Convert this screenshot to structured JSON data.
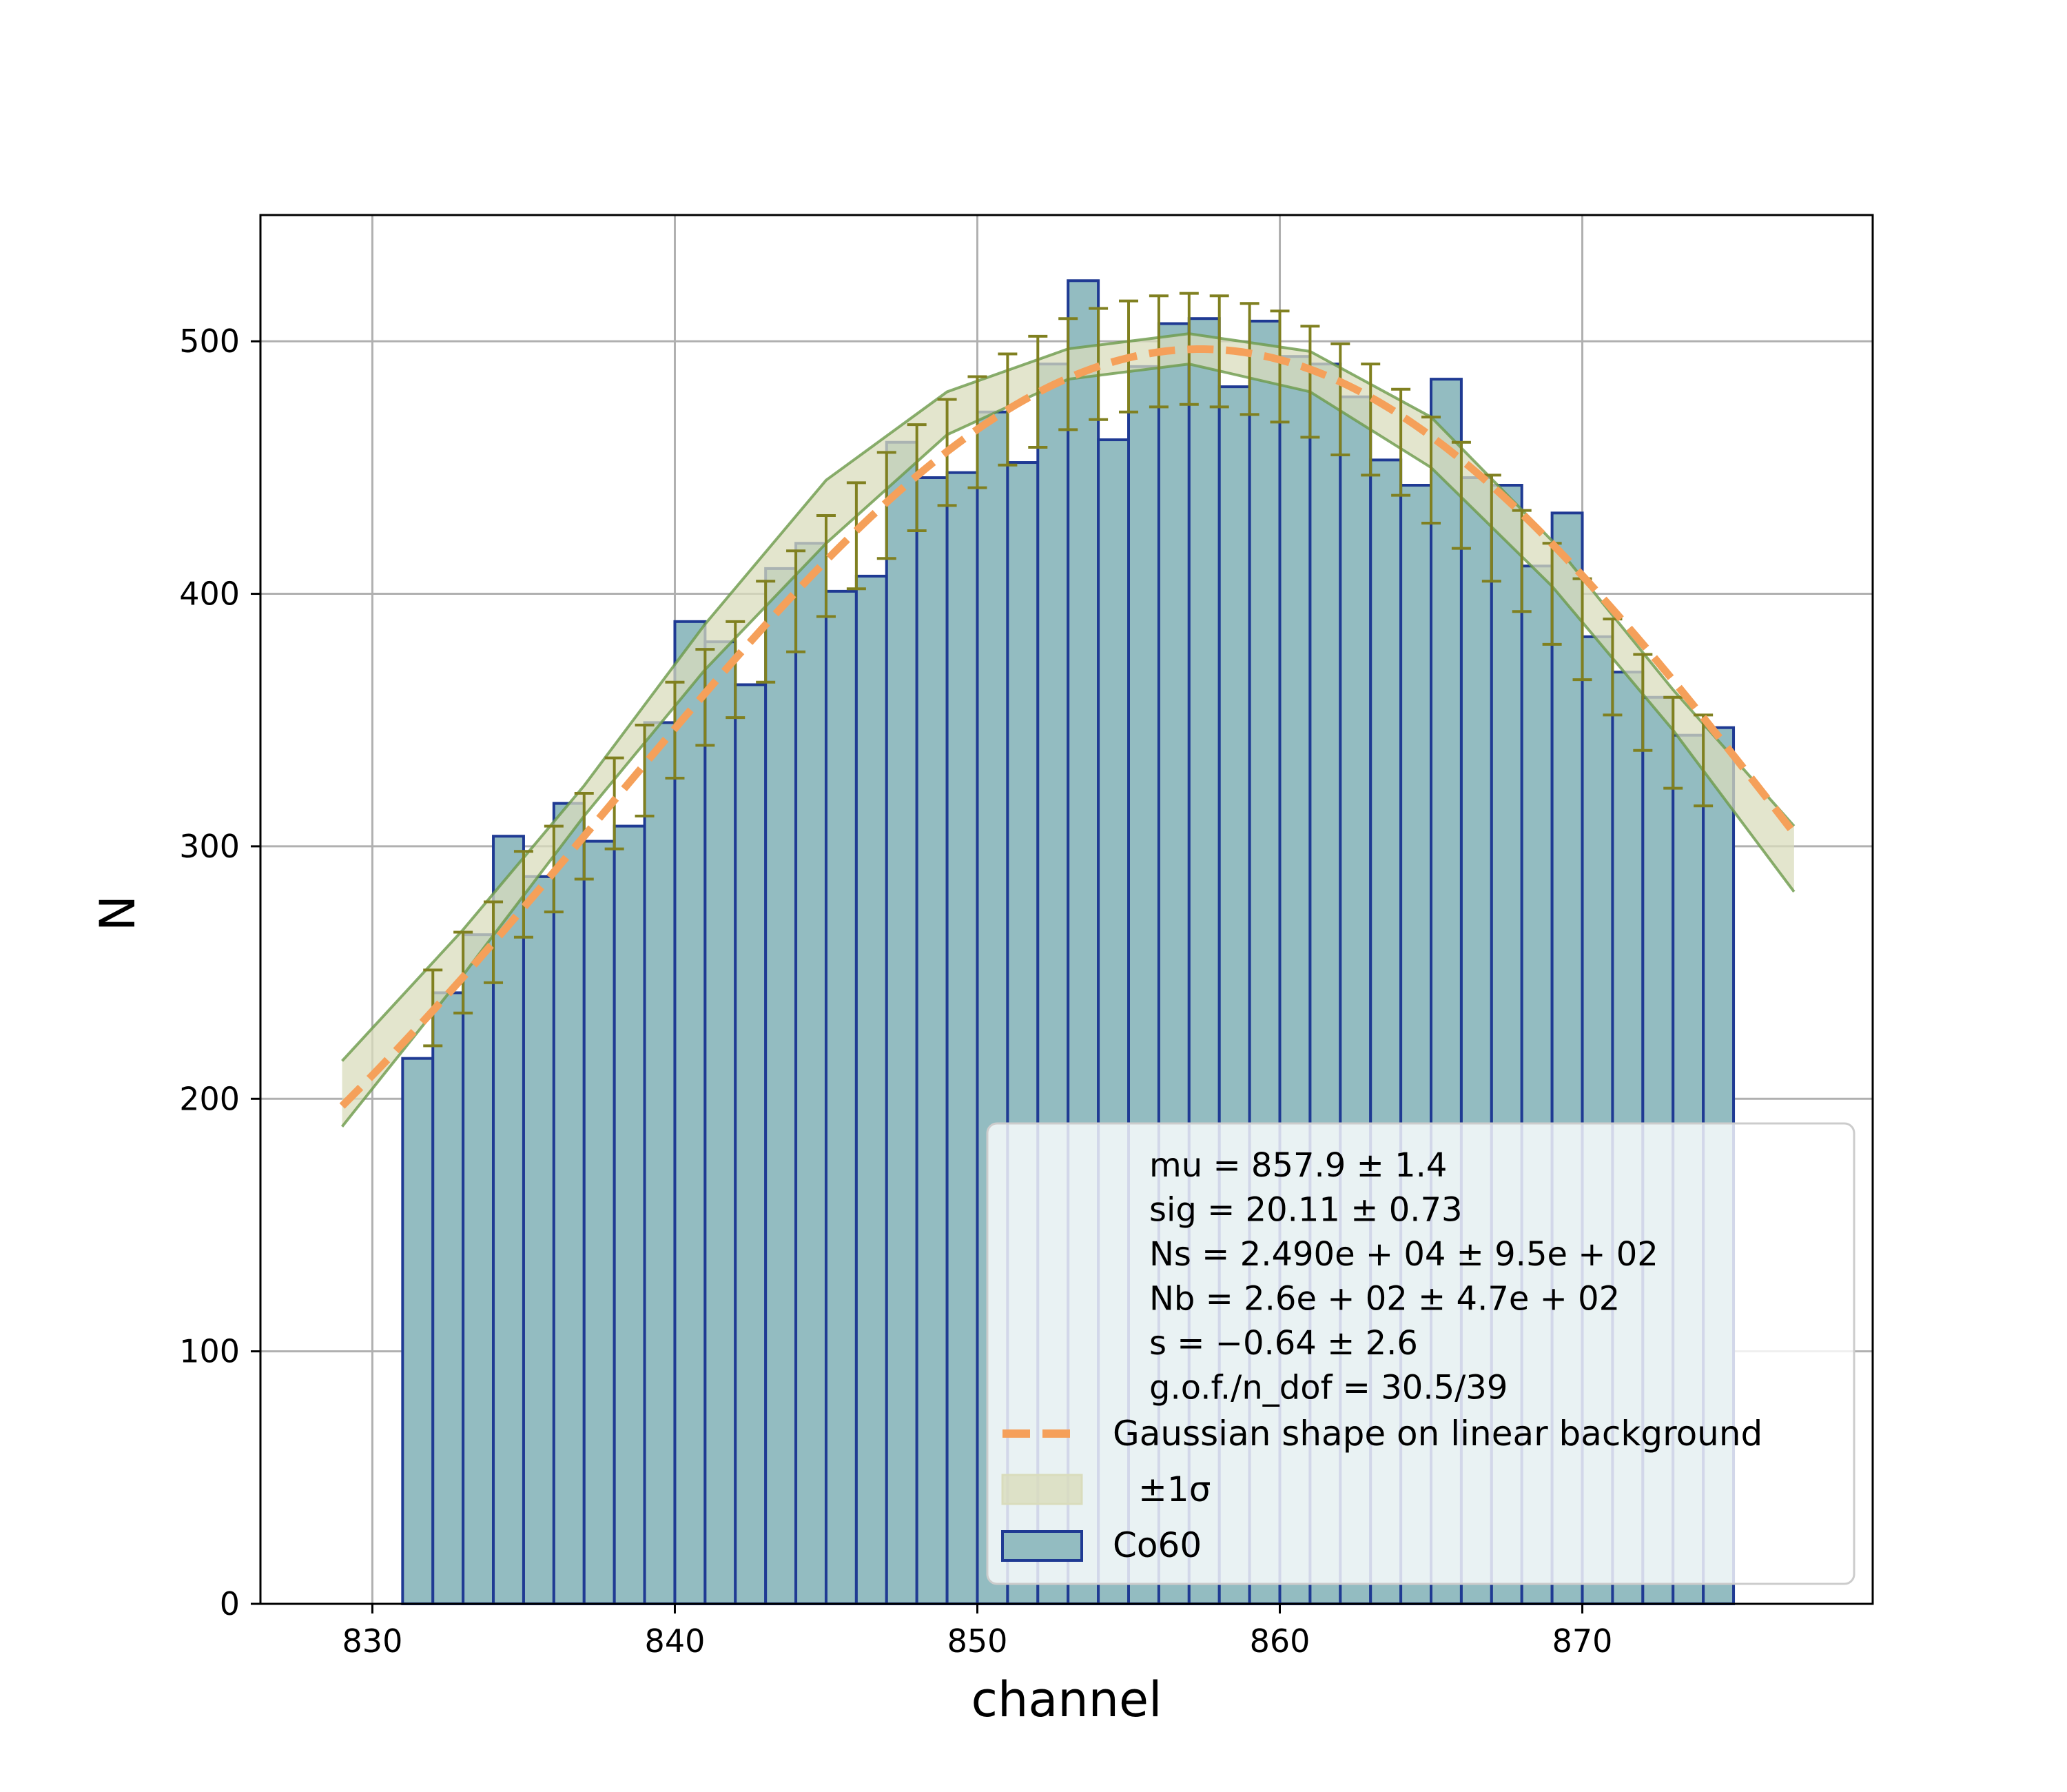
{
  "chart_data": {
    "type": "bar",
    "xlabel": "channel",
    "ylabel": "N",
    "xlim": [
      826.3,
      879.6
    ],
    "ylim": [
      0,
      550
    ],
    "x_ticks": [
      830,
      840,
      850,
      860,
      870
    ],
    "y_ticks": [
      0,
      100,
      200,
      300,
      400,
      500
    ],
    "grid": true,
    "legend_position": "lower-right",
    "bin_edges": [
      831,
      832,
      833,
      834,
      835,
      836,
      837,
      838,
      839,
      840,
      841,
      842,
      843,
      844,
      845,
      846,
      847,
      848,
      849,
      850,
      851,
      852,
      853,
      854,
      855,
      856,
      857,
      858,
      859,
      860,
      861,
      862,
      863,
      864,
      865,
      866,
      867,
      868,
      869,
      870,
      871,
      872,
      873,
      874,
      875
    ],
    "series": [
      {
        "name": "Co60",
        "kind": "histogram",
        "color": "#93bcc1",
        "edge_color": "#1f3a93",
        "values": [
          216,
          242,
          265,
          304,
          288,
          317,
          302,
          308,
          349,
          389,
          381,
          364,
          410,
          420,
          401,
          407,
          460,
          446,
          448,
          472,
          452,
          491,
          524,
          461,
          490,
          507,
          509,
          482,
          508,
          494,
          491,
          478,
          453,
          443,
          485,
          446,
          443,
          411,
          432,
          383,
          369,
          359,
          344,
          347
        ]
      },
      {
        "name": "Gaussian shape on linear background",
        "kind": "fit",
        "color": "#f5a05a",
        "mu": 857.9,
        "sig": 20.11,
        "Ns": 24900,
        "Nb": 260,
        "s": -0.64,
        "x_range": [
          829,
          877
        ]
      },
      {
        "name": "±1σ",
        "kind": "band",
        "color": "#d9dcbc",
        "edge_color": "#6b9a4a",
        "upper": [
          [
            829,
            215
          ],
          [
            833,
            267
          ],
          [
            837,
            324
          ],
          [
            841,
            388
          ],
          [
            845,
            445
          ],
          [
            849,
            480
          ],
          [
            853,
            497
          ],
          [
            857,
            503
          ],
          [
            861,
            496
          ],
          [
            865,
            470
          ],
          [
            869,
            421
          ],
          [
            873,
            362
          ],
          [
            877,
            308
          ]
        ],
        "lower": [
          [
            829,
            189
          ],
          [
            833,
            249
          ],
          [
            837,
            312
          ],
          [
            841,
            370
          ],
          [
            845,
            420
          ],
          [
            849,
            463
          ],
          [
            853,
            485
          ],
          [
            857,
            491
          ],
          [
            861,
            480
          ],
          [
            865,
            450
          ],
          [
            869,
            403
          ],
          [
            873,
            346
          ],
          [
            877,
            282
          ]
        ]
      }
    ],
    "error_bar_color": "#808020",
    "error_bars": {
      "centers": [
        832,
        833,
        834,
        835,
        836,
        837,
        838,
        839,
        840,
        841,
        842,
        843,
        844,
        845,
        846,
        847,
        848,
        849,
        850,
        851,
        852,
        853,
        854,
        855,
        856,
        857,
        858,
        859,
        860,
        861,
        862,
        863,
        864,
        865,
        866,
        867,
        868,
        869,
        870,
        871,
        872,
        873,
        874
      ],
      "y": [
        236,
        250,
        262,
        281,
        291,
        304,
        317,
        330,
        346,
        359,
        370,
        385,
        397,
        411,
        423,
        435,
        446,
        456,
        464,
        473,
        480,
        487,
        491,
        494,
        496,
        497,
        496,
        493,
        490,
        484,
        477,
        469,
        460,
        449,
        439,
        426,
        413,
        400,
        386,
        371,
        357,
        341,
        334
      ],
      "err": [
        15,
        16,
        16,
        17,
        17,
        17,
        18,
        18,
        19,
        19,
        19,
        20,
        20,
        20,
        21,
        21,
        21,
        21,
        22,
        22,
        22,
        22,
        22,
        22,
        22,
        22,
        22,
        22,
        22,
        22,
        22,
        22,
        21,
        21,
        21,
        21,
        20,
        20,
        20,
        19,
        19,
        18,
        18
      ]
    },
    "fit_results": [
      "mu = 857.9 ± 1.4",
      "sig = 20.11 ± 0.73",
      "Ns = 2.490e + 04 ± 9.5e + 02",
      "Nb = 2.6e + 02 ± 4.7e + 02",
      "s = −0.64 ± 2.6",
      "g.o.f./n_dof = 30.5/39"
    ]
  }
}
